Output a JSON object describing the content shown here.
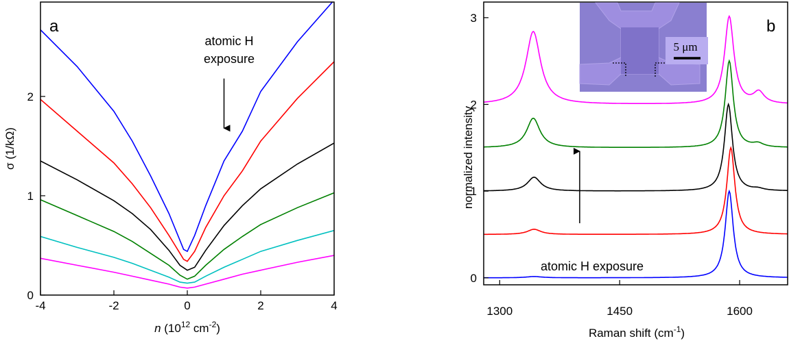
{
  "chart_data": [
    {
      "panel": "a",
      "type": "line",
      "panel_label": "a",
      "xlabel_italic": "n",
      "xlabel_rest": " (10",
      "xlabel_sup": "12",
      "xlabel_tail": " cm",
      "xlabel_sup2": "-2",
      "xlabel_close": ")",
      "ylabel": "σ (1/kΩ)",
      "xlim": [
        -4,
        4
      ],
      "ylim": [
        0,
        2.95
      ],
      "xticks": [
        -4,
        -2,
        0,
        2,
        4
      ],
      "xtick_labels": [
        "-4",
        "-2",
        "0",
        "2",
        "4"
      ],
      "yticks": [
        0,
        1,
        2
      ],
      "ytick_labels": [
        "0",
        "1",
        "2"
      ],
      "annotation_lines": [
        "atomic H",
        "exposure"
      ],
      "annotation_arrow": {
        "x": 1.0,
        "y_from": 2.18,
        "y_to": 1.68
      },
      "series": [
        {
          "color": "#0000ff",
          "x": [
            -4,
            -3,
            -2,
            -1.5,
            -1,
            -0.5,
            -0.2,
            -0.1,
            0,
            0.2,
            0.5,
            1,
            1.5,
            2,
            3,
            4
          ],
          "y": [
            2.67,
            2.3,
            1.85,
            1.55,
            1.2,
            0.82,
            0.55,
            0.46,
            0.44,
            0.6,
            0.9,
            1.35,
            1.65,
            2.05,
            2.55,
            2.97
          ]
        },
        {
          "color": "#ff0000",
          "x": [
            -4,
            -3,
            -2,
            -1.5,
            -1,
            -0.5,
            -0.2,
            -0.1,
            0,
            0.2,
            0.5,
            1,
            1.5,
            2,
            3,
            4
          ],
          "y": [
            1.97,
            1.65,
            1.33,
            1.12,
            0.88,
            0.6,
            0.42,
            0.36,
            0.34,
            0.44,
            0.68,
            1.0,
            1.25,
            1.55,
            1.98,
            2.35
          ]
        },
        {
          "color": "#000000",
          "x": [
            -4,
            -3,
            -2,
            -1.5,
            -1,
            -0.5,
            -0.2,
            0,
            0.2,
            0.5,
            1,
            1.5,
            2,
            3,
            4
          ],
          "y": [
            1.35,
            1.16,
            0.95,
            0.82,
            0.66,
            0.45,
            0.3,
            0.25,
            0.28,
            0.45,
            0.7,
            0.9,
            1.07,
            1.32,
            1.53
          ]
        },
        {
          "color": "#008000",
          "x": [
            -4,
            -3,
            -2,
            -1.5,
            -1,
            -0.5,
            -0.2,
            0,
            0.2,
            0.5,
            1,
            1.5,
            2,
            3,
            4
          ],
          "y": [
            0.96,
            0.8,
            0.64,
            0.54,
            0.42,
            0.3,
            0.2,
            0.16,
            0.19,
            0.3,
            0.46,
            0.59,
            0.71,
            0.88,
            1.03
          ]
        },
        {
          "color": "#00c0c0",
          "x": [
            -4,
            -3,
            -2,
            -1.5,
            -1,
            -0.5,
            -0.2,
            0,
            0.2,
            0.5,
            1,
            1.5,
            2,
            3,
            4
          ],
          "y": [
            0.59,
            0.48,
            0.38,
            0.32,
            0.25,
            0.18,
            0.13,
            0.12,
            0.13,
            0.19,
            0.28,
            0.36,
            0.44,
            0.55,
            0.65
          ]
        },
        {
          "color": "#ff00ff",
          "x": [
            -4,
            -3,
            -2,
            -1.5,
            -1,
            -0.5,
            -0.2,
            0,
            0.2,
            0.5,
            1,
            1.5,
            2,
            3,
            4
          ],
          "y": [
            0.37,
            0.3,
            0.23,
            0.19,
            0.15,
            0.11,
            0.08,
            0.07,
            0.08,
            0.11,
            0.16,
            0.21,
            0.25,
            0.33,
            0.4
          ]
        }
      ]
    },
    {
      "panel": "b",
      "type": "line",
      "panel_label": "b",
      "xlabel_main": "Raman shift (cm",
      "xlabel_sup": "-1",
      "xlabel_close": ")",
      "ylabel": "normalized intensity",
      "xlim": [
        1280,
        1660
      ],
      "ylim": [
        -0.08,
        3.18
      ],
      "xticks": [
        1300,
        1450,
        1600
      ],
      "xtick_labels": [
        "1300",
        "1450",
        "1600"
      ],
      "yticks": [
        0,
        1,
        2,
        3
      ],
      "ytick_labels": [
        "0",
        "1",
        "2",
        "3"
      ],
      "annotation_text": "atomic H exposure",
      "annotation_arrow": {
        "x": 1400,
        "y_from": 0.63,
        "y_to": 1.46
      },
      "inset_scale_label": "5 μm",
      "series": [
        {
          "color": "#0000ff",
          "offset": 0.0,
          "peaks": [
            {
              "c": 1343,
              "h": 0.015,
              "w": 12
            },
            {
              "c": 1587,
              "h": 1.0,
              "w": 6
            },
            {
              "c": 1623,
              "h": 0.0,
              "w": 6
            }
          ]
        },
        {
          "color": "#ff0000",
          "offset": 0.5,
          "peaks": [
            {
              "c": 1343,
              "h": 0.06,
              "w": 10
            },
            {
              "c": 1589,
              "h": 1.0,
              "w": 6
            },
            {
              "c": 1623,
              "h": 0.0,
              "w": 6
            }
          ]
        },
        {
          "color": "#000000",
          "offset": 1.0,
          "peaks": [
            {
              "c": 1343,
              "h": 0.16,
              "w": 10
            },
            {
              "c": 1586,
              "h": 1.0,
              "w": 6
            },
            {
              "c": 1623,
              "h": 0.02,
              "w": 8
            }
          ]
        },
        {
          "color": "#008000",
          "offset": 1.5,
          "peaks": [
            {
              "c": 1342,
              "h": 0.34,
              "w": 10
            },
            {
              "c": 1587,
              "h": 1.0,
              "w": 6
            },
            {
              "c": 1623,
              "h": 0.04,
              "w": 8
            }
          ]
        },
        {
          "color": "#ff00ff",
          "offset": 2.0,
          "peaks": [
            {
              "c": 1342,
              "h": 0.84,
              "w": 11
            },
            {
              "c": 1587,
              "h": 1.01,
              "w": 7
            },
            {
              "c": 1624,
              "h": 0.13,
              "w": 8
            }
          ]
        }
      ]
    }
  ]
}
